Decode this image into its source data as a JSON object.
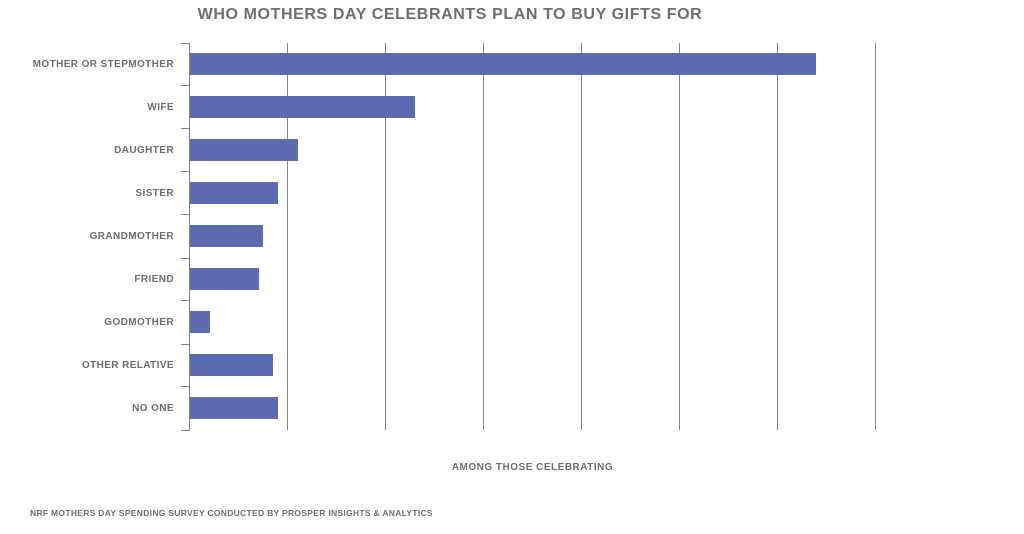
{
  "title": "WHO MOTHERS DAY CELEBRANTS PLAN TO BUY GIFTS FOR",
  "xaxis_label": "AMONG THOSE CELEBRATING",
  "footer": "NRF MOTHERS DAY SPENDING SURVEY CONDUCTED BY PROSPER INSIGHTS & ANALYTICS",
  "colors": {
    "bar": "#5d6cb0",
    "grid": "#848484",
    "text": "#6d6e71",
    "background": "#ffffff"
  },
  "chart_data": {
    "type": "bar",
    "orientation": "horizontal",
    "title": "WHO MOTHERS DAY CELEBRANTS PLAN TO BUY GIFTS FOR",
    "xlabel": "AMONG THOSE CELEBRATING",
    "ylabel": "",
    "categories": [
      "MOTHER OR STEPMOTHER",
      "WIFE",
      "DAUGHTER",
      "SISTER",
      "GRANDMOTHER",
      "FRIEND",
      "GODMOTHER",
      "OTHER RELATIVE",
      "NO ONE"
    ],
    "values": [
      64,
      23,
      11,
      9,
      7.5,
      7,
      2,
      8.5,
      9
    ],
    "unit": "percent",
    "xlim": [
      0,
      70
    ],
    "xticks": [
      0,
      10,
      20,
      30,
      40,
      50,
      60,
      70
    ],
    "grid": true,
    "legend": false
  }
}
